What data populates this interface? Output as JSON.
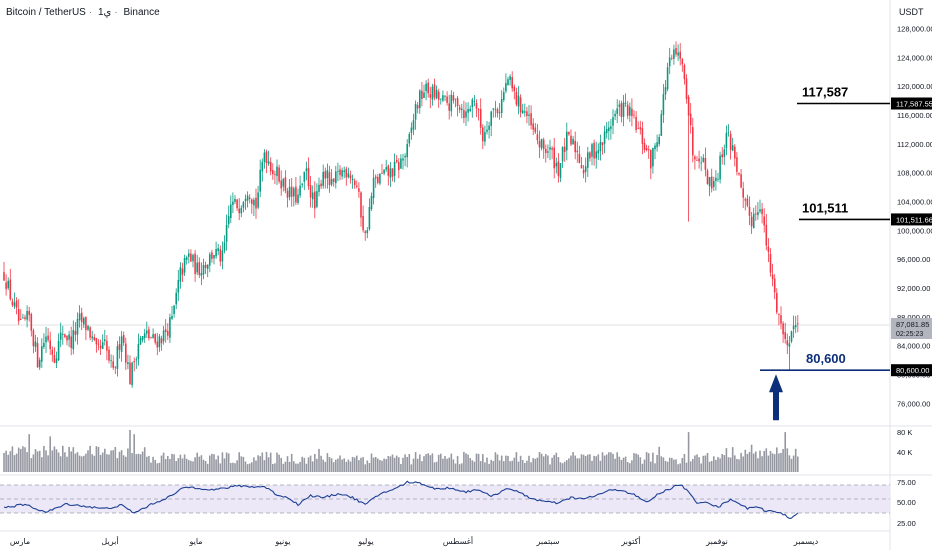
{
  "header": {
    "pair": "Bitcoin / TetherUS",
    "interval": "1ي",
    "exchange": "Binance",
    "separator": "·"
  },
  "price_axis": {
    "currency": "USDT",
    "current_price": "87,081.85",
    "countdown": "02:25:23"
  },
  "levels": [
    {
      "value": 117587,
      "label": "117,587",
      "tag": "117,587.55",
      "color": "#000000"
    },
    {
      "value": 101511,
      "label": "101,511",
      "tag": "101,511.66",
      "color": "#000000"
    },
    {
      "value": 80600,
      "label": "80,600",
      "tag": "80,600.00",
      "color": "#0d2e7a"
    }
  ],
  "arrow": {
    "color": "#0d2e7a"
  },
  "colors": {
    "up": "#089981",
    "down": "#f23645",
    "volume": "#9598a1",
    "rsi_line": "#1c3f94",
    "rsi_band": "#ece8f8"
  },
  "chart_data": {
    "type": "candlestick",
    "x_labels": [
      "مارس",
      "أبريل",
      "مايو",
      "يونيو",
      "يوليو",
      "أغسطس",
      "سبتمبر",
      "أكتوبر",
      "نوفمبر",
      "ديسمبر"
    ],
    "price_axis": {
      "ylim": [
        73000,
        130000
      ],
      "ticks": [
        "76,000.00",
        "80,000.00",
        "84,000.00",
        "88,000.00",
        "92,000.00",
        "96,000.00",
        "100,000.00",
        "104,000.00",
        "108,000.00",
        "112,000.00",
        "116,000.00",
        "120,000.00",
        "124,000.00",
        "128,000.00"
      ]
    },
    "anchors": [
      [
        0,
        94000
      ],
      [
        4,
        90000
      ],
      [
        8,
        86500
      ],
      [
        12,
        88000
      ],
      [
        16,
        82000
      ],
      [
        20,
        85500
      ],
      [
        24,
        82500
      ],
      [
        28,
        86000
      ],
      [
        32,
        84500
      ],
      [
        36,
        87500
      ],
      [
        40,
        86500
      ],
      [
        44,
        83000
      ],
      [
        48,
        84000
      ],
      [
        52,
        80000
      ],
      [
        56,
        86000
      ],
      [
        60,
        79500
      ],
      [
        64,
        84500
      ],
      [
        68,
        85500
      ],
      [
        72,
        84500
      ],
      [
        76,
        85500
      ],
      [
        80,
        87500
      ],
      [
        84,
        94000
      ],
      [
        88,
        96500
      ],
      [
        92,
        94500
      ],
      [
        96,
        95500
      ],
      [
        100,
        97000
      ],
      [
        104,
        96000
      ],
      [
        108,
        103500
      ],
      [
        112,
        103500
      ],
      [
        116,
        106000
      ],
      [
        120,
        103500
      ],
      [
        124,
        111000
      ],
      [
        128,
        108500
      ],
      [
        132,
        107000
      ],
      [
        136,
        105000
      ],
      [
        140,
        104500
      ],
      [
        144,
        108000
      ],
      [
        148,
        103000
      ],
      [
        152,
        108500
      ],
      [
        156,
        106000
      ],
      [
        160,
        108000
      ],
      [
        164,
        108500
      ],
      [
        168,
        106000
      ],
      [
        172,
        99000
      ],
      [
        176,
        106500
      ],
      [
        180,
        107500
      ],
      [
        184,
        108000
      ],
      [
        188,
        109000
      ],
      [
        192,
        111000
      ],
      [
        196,
        117000
      ],
      [
        200,
        119500
      ],
      [
        204,
        119000
      ],
      [
        208,
        118000
      ],
      [
        212,
        117500
      ],
      [
        216,
        118000
      ],
      [
        220,
        116000
      ],
      [
        224,
        118500
      ],
      [
        228,
        113000
      ],
      [
        232,
        116500
      ],
      [
        236,
        117000
      ],
      [
        240,
        121000
      ],
      [
        244,
        118000
      ],
      [
        248,
        116500
      ],
      [
        252,
        113500
      ],
      [
        256,
        111500
      ],
      [
        260,
        111000
      ],
      [
        264,
        108500
      ],
      [
        268,
        112500
      ],
      [
        272,
        111500
      ],
      [
        276,
        108500
      ],
      [
        280,
        111000
      ],
      [
        284,
        111500
      ],
      [
        288,
        114500
      ],
      [
        292,
        116500
      ],
      [
        296,
        117000
      ],
      [
        300,
        115000
      ],
      [
        304,
        112500
      ],
      [
        308,
        109500
      ],
      [
        312,
        114000
      ],
      [
        316,
        122500
      ],
      [
        320,
        124500
      ],
      [
        324,
        122000
      ],
      [
        328,
        111000
      ],
      [
        332,
        110500
      ],
      [
        336,
        106500
      ],
      [
        340,
        108000
      ],
      [
        344,
        113500
      ],
      [
        348,
        110500
      ],
      [
        352,
        103500
      ],
      [
        356,
        101500
      ],
      [
        360,
        104000
      ],
      [
        364,
        96000
      ],
      [
        368,
        89500
      ],
      [
        372,
        84500
      ],
      [
        376,
        86500
      ],
      [
        378,
        87081
      ]
    ],
    "volume_axis": {
      "ticks": [
        "40 K",
        "80 K"
      ]
    },
    "rsi": {
      "levels": [
        30,
        50,
        70
      ],
      "ticks": [
        "25.00",
        "50.00",
        "75.00"
      ],
      "anchors": [
        [
          0,
          38
        ],
        [
          10,
          42
        ],
        [
          20,
          31
        ],
        [
          30,
          43
        ],
        [
          40,
          39
        ],
        [
          48,
          36
        ],
        [
          56,
          41
        ],
        [
          62,
          30
        ],
        [
          70,
          42
        ],
        [
          80,
          55
        ],
        [
          86,
          67
        ],
        [
          92,
          66
        ],
        [
          100,
          63
        ],
        [
          108,
          67
        ],
        [
          112,
          69
        ],
        [
          120,
          67
        ],
        [
          124,
          68
        ],
        [
          130,
          56
        ],
        [
          136,
          51
        ],
        [
          140,
          42
        ],
        [
          146,
          55
        ],
        [
          152,
          52
        ],
        [
          160,
          58
        ],
        [
          166,
          52
        ],
        [
          172,
          42
        ],
        [
          180,
          59
        ],
        [
          186,
          64
        ],
        [
          192,
          74
        ],
        [
          198,
          73
        ],
        [
          206,
          64
        ],
        [
          212,
          66
        ],
        [
          220,
          60
        ],
        [
          226,
          64
        ],
        [
          232,
          53
        ],
        [
          240,
          66
        ],
        [
          246,
          58
        ],
        [
          252,
          50
        ],
        [
          258,
          46
        ],
        [
          264,
          44
        ],
        [
          270,
          52
        ],
        [
          276,
          50
        ],
        [
          282,
          55
        ],
        [
          288,
          62
        ],
        [
          294,
          63
        ],
        [
          300,
          56
        ],
        [
          306,
          45
        ],
        [
          312,
          58
        ],
        [
          318,
          66
        ],
        [
          322,
          71
        ],
        [
          326,
          60
        ],
        [
          330,
          43
        ],
        [
          334,
          47
        ],
        [
          340,
          38
        ],
        [
          346,
          50
        ],
        [
          350,
          44
        ],
        [
          354,
          36
        ],
        [
          358,
          40
        ],
        [
          362,
          34
        ],
        [
          368,
          31
        ],
        [
          372,
          27
        ],
        [
          374,
          22
        ],
        [
          378,
          30
        ]
      ]
    }
  }
}
